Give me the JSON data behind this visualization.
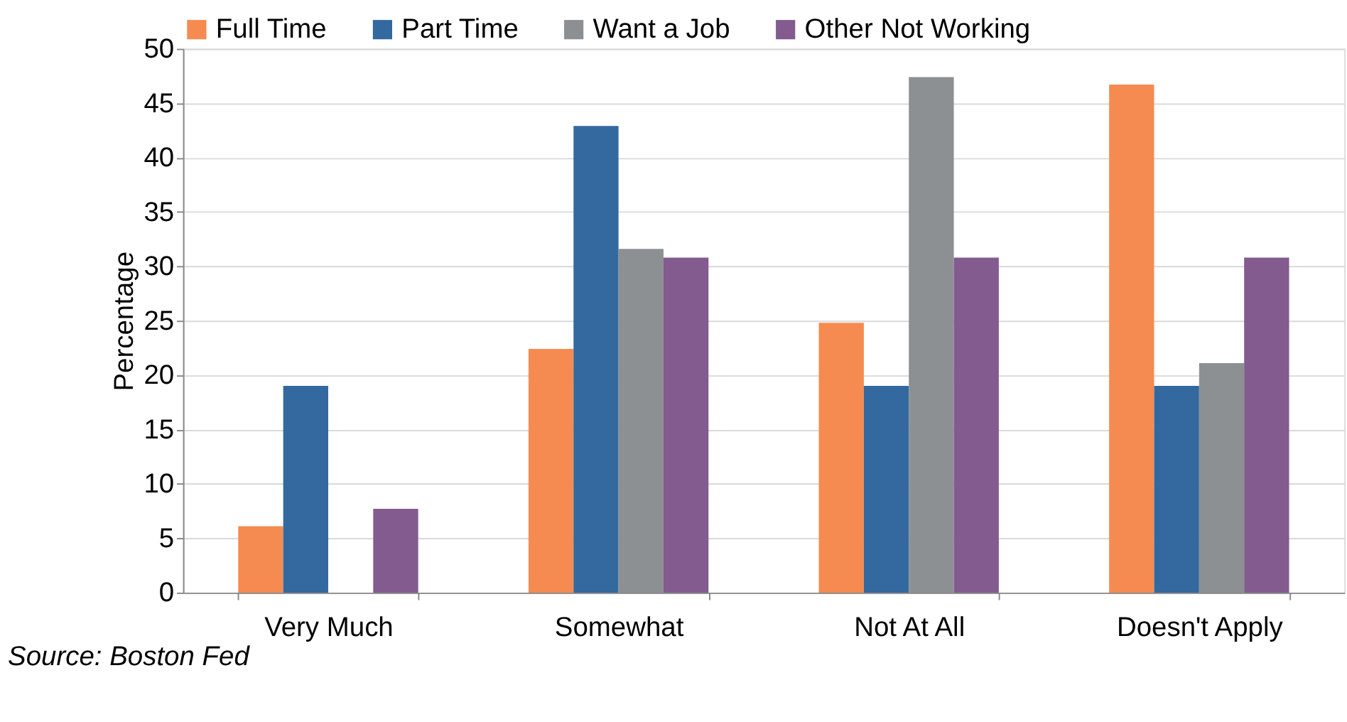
{
  "chart_data": {
    "type": "bar",
    "ylabel": "Percentage",
    "categories": [
      "Very Much",
      "Somewhat",
      "Not At All",
      "Doesn't Apply"
    ],
    "series": [
      {
        "name": "Full Time",
        "color": "#f58b50",
        "values": [
          6.1,
          22.4,
          24.8,
          46.7
        ]
      },
      {
        "name": "Part Time",
        "color": "#33699f",
        "values": [
          19,
          42.9,
          19,
          19
        ]
      },
      {
        "name": "Want a Job",
        "color": "#8c9093",
        "values": [
          0,
          31.6,
          47.4,
          21.1
        ]
      },
      {
        "name": "Other Not Working",
        "color": "#835b8f",
        "values": [
          7.7,
          30.8,
          30.8,
          30.8
        ]
      }
    ],
    "ylim": [
      0,
      50
    ],
    "yticks": [
      0,
      5,
      10,
      15,
      20,
      25,
      30,
      35,
      40,
      45,
      50
    ],
    "grid": "y",
    "legend": "top",
    "annotations": [
      "Source: Boston Fed"
    ]
  }
}
